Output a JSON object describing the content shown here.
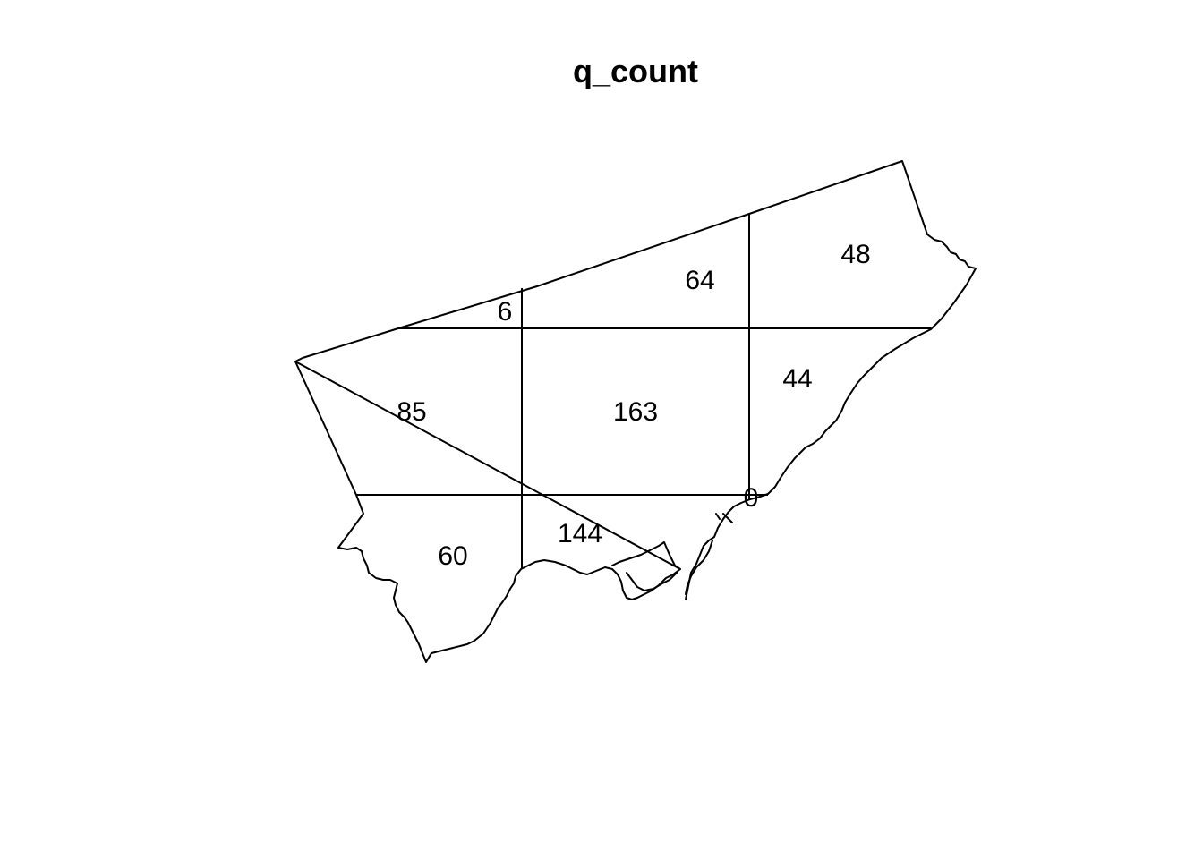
{
  "title": "q_count",
  "quadrat_counts": [
    {
      "row": 1,
      "col": 2,
      "count": "6"
    },
    {
      "row": 1,
      "col": 3,
      "count": "64"
    },
    {
      "row": 1,
      "col": 4,
      "count": "48"
    },
    {
      "row": 2,
      "col": 1,
      "count": "85"
    },
    {
      "row": 2,
      "col": 2,
      "count": "163"
    },
    {
      "row": 2,
      "col": 3,
      "count": "44"
    },
    {
      "row": 3,
      "col": 1,
      "count": "60"
    },
    {
      "row": 3,
      "col": 2,
      "count": "144"
    },
    {
      "row": 3,
      "col": 3,
      "count": "0"
    }
  ],
  "colors": {
    "line": "#000000",
    "background": "#ffffff"
  }
}
